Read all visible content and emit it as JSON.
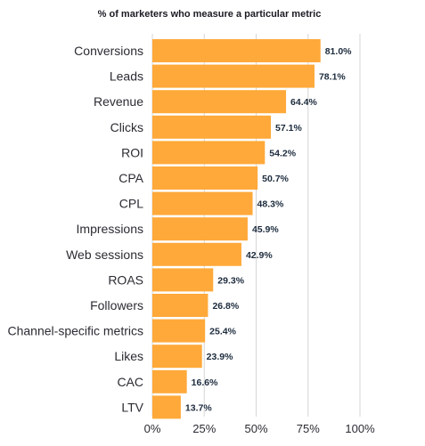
{
  "chart_data": {
    "type": "bar",
    "orientation": "horizontal",
    "title": "% of marketers who measure a particular metric",
    "categories": [
      "Conversions",
      "Leads",
      "Revenue",
      "Clicks",
      "ROI",
      "CPA",
      "CPL",
      "Impressions",
      "Web sessions",
      "ROAS",
      "Followers",
      "Channel-specific metrics",
      "Likes",
      "CAC",
      "LTV"
    ],
    "values": [
      81.0,
      78.1,
      64.4,
      57.1,
      54.2,
      50.7,
      48.3,
      45.9,
      42.9,
      29.3,
      26.8,
      25.4,
      23.9,
      16.6,
      13.7
    ],
    "value_labels": [
      "81.0%",
      "78.1%",
      "64.4%",
      "57.1%",
      "54.2%",
      "50.7%",
      "48.3%",
      "45.9%",
      "42.9%",
      "29.3%",
      "26.8%",
      "25.4%",
      "23.9%",
      "16.6%",
      "13.7%"
    ],
    "xlim": [
      0,
      100
    ],
    "x_ticks": [
      0,
      25,
      50,
      75,
      100
    ],
    "x_tick_labels": [
      "0%",
      "25%",
      "50%",
      "75%",
      "100%"
    ],
    "xlabel": "",
    "ylabel": "",
    "grid": "vertical",
    "legend": "none",
    "colors": {
      "bar": "#FFA93A",
      "grid": "#d6d6d6",
      "text": "#2b2b33",
      "value_text": "#1c2b3d"
    }
  }
}
